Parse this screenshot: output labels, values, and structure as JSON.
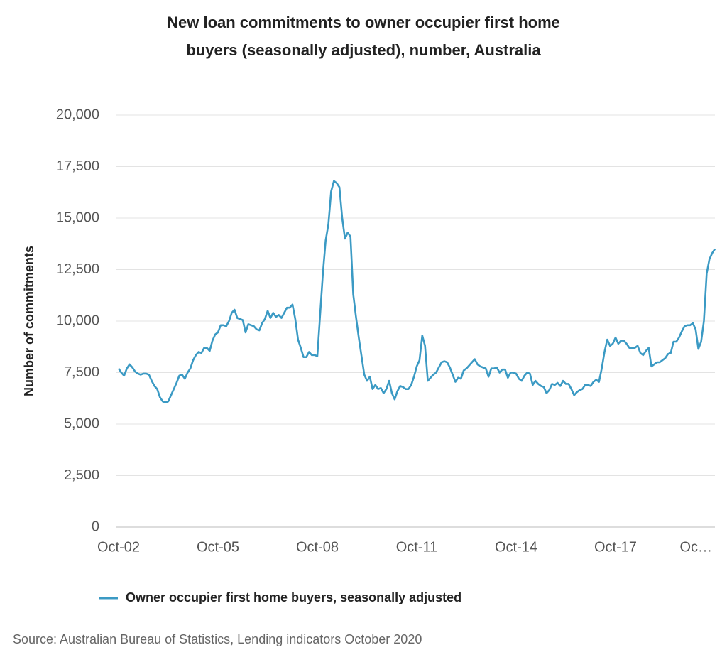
{
  "chart_data": {
    "type": "line",
    "title": "New loan commitments to owner occupier first home buyers (seasonally adjusted), number, Australia",
    "y_label": "Number of commitments",
    "source": "Source: Australian Bureau of Statistics, Lending indicators October 2020",
    "categories": [
      "Oct-02",
      null,
      null,
      null,
      null,
      null,
      null,
      null,
      null,
      null,
      null,
      null,
      null,
      null,
      null,
      null,
      null,
      null,
      null,
      null,
      null,
      null,
      null,
      null,
      null,
      null,
      null,
      null,
      null,
      null,
      null,
      null,
      null,
      null,
      null,
      null,
      "Oct-05",
      null,
      null,
      null,
      null,
      null,
      null,
      null,
      null,
      null,
      null,
      null,
      null,
      null,
      null,
      null,
      null,
      null,
      null,
      null,
      null,
      null,
      null,
      null,
      null,
      null,
      null,
      null,
      null,
      null,
      null,
      null,
      null,
      null,
      null,
      null,
      "Oct-08",
      null,
      null,
      null,
      null,
      null,
      null,
      null,
      null,
      null,
      null,
      null,
      null,
      null,
      null,
      null,
      null,
      null,
      null,
      null,
      null,
      null,
      null,
      null,
      null,
      null,
      null,
      null,
      null,
      null,
      null,
      null,
      null,
      null,
      null,
      null,
      "Oct-11",
      null,
      null,
      null,
      null,
      null,
      null,
      null,
      null,
      null,
      null,
      null,
      null,
      null,
      null,
      null,
      null,
      null,
      null,
      null,
      null,
      null,
      null,
      null,
      null,
      null,
      null,
      null,
      null,
      null,
      null,
      null,
      null,
      null,
      null,
      null,
      "Oct-14",
      null,
      null,
      null,
      null,
      null,
      null,
      null,
      null,
      null,
      null,
      null,
      null,
      null,
      null,
      null,
      null,
      null,
      null,
      null,
      null,
      null,
      null,
      null,
      null,
      null,
      null,
      null,
      null,
      null,
      null,
      null,
      null,
      null,
      null,
      null,
      "Oct-17",
      null,
      null,
      null,
      null,
      null,
      null,
      null,
      null,
      null,
      null,
      null,
      null,
      null,
      null,
      null,
      null,
      null,
      null,
      null,
      null,
      null,
      null,
      null,
      null,
      null,
      null,
      null,
      null,
      null,
      null,
      null,
      null,
      null,
      null,
      null,
      "Oc…"
    ],
    "series": [
      {
        "name": "Owner occupier first home buyers, seasonally adjusted",
        "color": "#3b9ac4",
        "values": [
          7700,
          7500,
          7350,
          7700,
          7900,
          7750,
          7550,
          7450,
          7400,
          7450,
          7450,
          7400,
          7100,
          6850,
          6700,
          6300,
          6100,
          6050,
          6100,
          6400,
          6700,
          7000,
          7350,
          7400,
          7200,
          7500,
          7700,
          8100,
          8350,
          8500,
          8450,
          8700,
          8700,
          8550,
          9050,
          9350,
          9450,
          9800,
          9800,
          9750,
          10000,
          10400,
          10550,
          10150,
          10100,
          10050,
          9450,
          9850,
          9800,
          9750,
          9600,
          9550,
          9900,
          10100,
          10500,
          10150,
          10400,
          10200,
          10300,
          10150,
          10400,
          10650,
          10650,
          10800,
          10100,
          9100,
          8700,
          8250,
          8250,
          8500,
          8350,
          8350,
          8300,
          10300,
          12300,
          13900,
          14700,
          16300,
          16800,
          16700,
          16500,
          15000,
          14000,
          14300,
          14100,
          11300,
          10200,
          9200,
          8300,
          7400,
          7100,
          7300,
          6700,
          6900,
          6700,
          6750,
          6500,
          6700,
          7100,
          6500,
          6200,
          6600,
          6850,
          6800,
          6700,
          6700,
          6900,
          7300,
          7800,
          8100,
          9300,
          8800,
          7100,
          7250,
          7400,
          7500,
          7750,
          8000,
          8050,
          8000,
          7750,
          7400,
          7050,
          7250,
          7200,
          7600,
          7700,
          7850,
          8000,
          8150,
          7900,
          7800,
          7750,
          7700,
          7300,
          7700,
          7700,
          7750,
          7500,
          7650,
          7650,
          7250,
          7500,
          7500,
          7450,
          7200,
          7100,
          7350,
          7500,
          7450,
          6900,
          7100,
          6950,
          6850,
          6800,
          6500,
          6650,
          6950,
          6900,
          7000,
          6850,
          7100,
          6950,
          6950,
          6700,
          6400,
          6550,
          6650,
          6700,
          6900,
          6900,
          6850,
          7050,
          7150,
          7050,
          7700,
          8500,
          9100,
          8800,
          8900,
          9200,
          8900,
          9050,
          9050,
          8900,
          8700,
          8700,
          8700,
          8800,
          8450,
          8350,
          8550,
          8700,
          7800,
          7900,
          8000,
          8000,
          8100,
          8200,
          8400,
          8450,
          9000,
          9000,
          9200,
          9500,
          9750,
          9800,
          9800,
          9900,
          9600,
          8650,
          9000,
          10000,
          12300,
          13000,
          13300,
          13500
        ]
      }
    ],
    "ylim": [
      0,
      20000
    ],
    "yticks": [
      0,
      {
        "value": 2500,
        "label": "2,500"
      },
      {
        "value": 5000,
        "label": "5,000"
      },
      {
        "value": 7500,
        "label": "7,500"
      },
      {
        "value": 10000,
        "label": "10,000"
      },
      {
        "value": 12500,
        "label": "12,500"
      },
      {
        "value": 15000,
        "label": "15,000"
      },
      {
        "value": 17500,
        "label": "17,500"
      },
      {
        "value": 20000,
        "label": "20,000"
      }
    ],
    "grid": true
  }
}
